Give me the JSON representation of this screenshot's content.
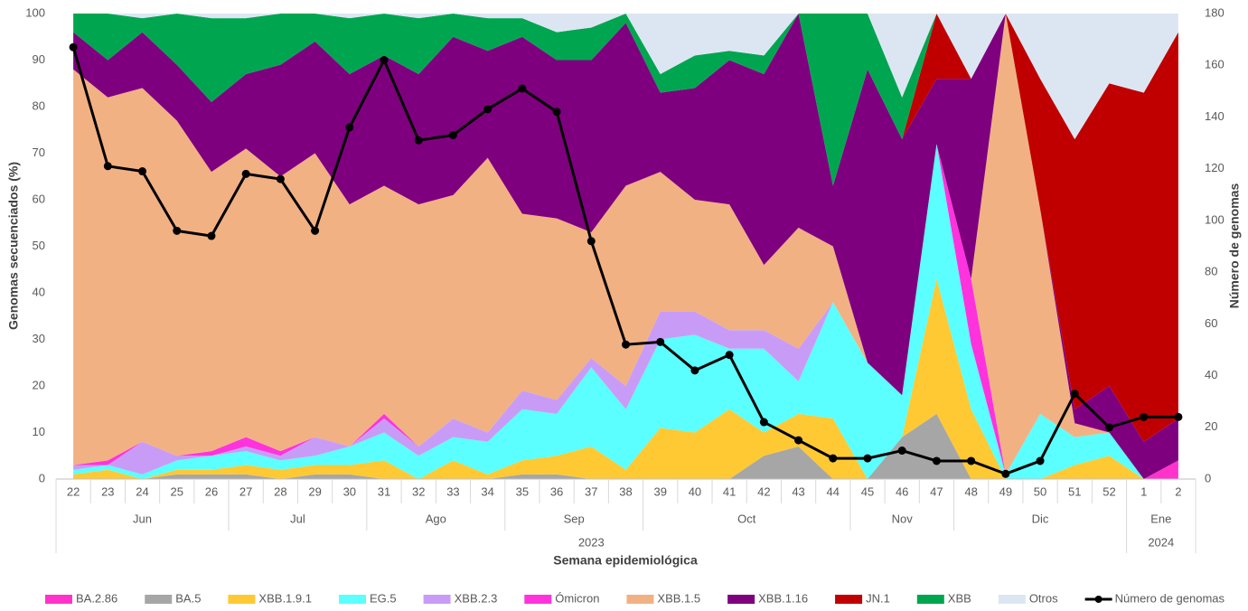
{
  "chart_data": {
    "type": "area",
    "stacked": true,
    "ylabel": "Genomas secuenciados (%)",
    "y2label": "Número de genomas",
    "xlabel": "Semana epidemiológica",
    "categories": [
      "22",
      "23",
      "24",
      "25",
      "26",
      "27",
      "28",
      "29",
      "30",
      "31",
      "32",
      "33",
      "34",
      "35",
      "36",
      "37",
      "38",
      "39",
      "40",
      "41",
      "42",
      "43",
      "44",
      "45",
      "46",
      "47",
      "48",
      "49",
      "50",
      "51",
      "52",
      "1",
      "2"
    ],
    "month_groups": [
      {
        "label": "Jun",
        "count": 5
      },
      {
        "label": "Jul",
        "count": 4
      },
      {
        "label": "Ago",
        "count": 4
      },
      {
        "label": "Sep",
        "count": 4
      },
      {
        "label": "Oct",
        "count": 6
      },
      {
        "label": "Nov",
        "count": 3
      },
      {
        "label": "Dic",
        "count": 5
      },
      {
        "label": "Ene",
        "count": 2
      }
    ],
    "year_groups": [
      {
        "label": "2023",
        "count": 31
      },
      {
        "label": "2024",
        "count": 2
      }
    ],
    "ylim": [
      0,
      100
    ],
    "yticks": [
      0,
      10,
      20,
      30,
      40,
      50,
      60,
      70,
      80,
      90,
      100
    ],
    "y2lim": [
      0,
      180
    ],
    "y2ticks": [
      0,
      20,
      40,
      60,
      80,
      100,
      120,
      140,
      160,
      180
    ],
    "series": [
      {
        "name": "BA.2.86",
        "color": "#ff33cc",
        "values": [
          0,
          0,
          0,
          0,
          0,
          0,
          0,
          0,
          0,
          0,
          0,
          0,
          0,
          0,
          0,
          0,
          0,
          0,
          0,
          0,
          0,
          0,
          0,
          0,
          0,
          0,
          0,
          0,
          0,
          0,
          0,
          0,
          4
        ]
      },
      {
        "name": "BA.5",
        "color": "#a6a6a6",
        "values": [
          0,
          0,
          0,
          1,
          1,
          1,
          0,
          1,
          1,
          0,
          0,
          0,
          0,
          1,
          1,
          0,
          0,
          0,
          0,
          0,
          5,
          7,
          0,
          0,
          9,
          14,
          0,
          0,
          0,
          0,
          0,
          0,
          0
        ]
      },
      {
        "name": "XBB.1.9.1",
        "color": "#ffc934",
        "values": [
          1,
          2,
          0,
          1,
          1,
          2,
          2,
          2,
          2,
          4,
          0,
          4,
          1,
          3,
          4,
          7,
          2,
          11,
          10,
          15,
          5,
          7,
          13,
          0,
          0,
          29,
          15,
          0,
          0,
          3,
          5,
          0,
          0
        ]
      },
      {
        "name": "EG.5",
        "color": "#5cffff",
        "values": [
          1,
          1,
          1,
          2,
          3,
          3,
          2,
          2,
          4,
          6,
          5,
          5,
          7,
          11,
          9,
          17,
          13,
          19,
          21,
          13,
          18,
          7,
          25,
          25,
          9,
          29,
          14,
          1,
          14,
          6,
          5,
          0,
          0
        ]
      },
      {
        "name": "XBB.2.3",
        "color": "#c89cf6",
        "values": [
          1,
          0,
          7,
          1,
          0,
          1,
          1,
          4,
          0,
          3,
          2,
          4,
          2,
          4,
          3,
          2,
          5,
          6,
          5,
          4,
          4,
          7,
          0,
          0,
          0,
          0,
          0,
          0,
          0,
          0,
          0,
          0,
          0
        ]
      },
      {
        "name": "Ómicron",
        "color": "#ff33dd",
        "values": [
          0,
          1,
          0,
          0,
          1,
          2,
          1,
          0,
          0,
          1,
          0,
          0,
          0,
          0,
          0,
          0,
          0,
          0,
          0,
          0,
          0,
          0,
          0,
          0,
          0,
          0,
          14,
          0,
          0,
          0,
          0,
          0,
          0
        ]
      },
      {
        "name": "XBB.1.5",
        "color": "#f2b183",
        "values": [
          85,
          78,
          76,
          72,
          60,
          62,
          59,
          61,
          52,
          49,
          52,
          48,
          59,
          38,
          39,
          27,
          43,
          30,
          24,
          27,
          14,
          26,
          12,
          0,
          0,
          0,
          0,
          99,
          44,
          3,
          0,
          0,
          0
        ]
      },
      {
        "name": "XBB.1.16",
        "color": "#7f007f",
        "values": [
          8,
          8,
          12,
          12,
          15,
          16,
          24,
          24,
          28,
          28,
          28,
          34,
          23,
          38,
          34,
          37,
          35,
          17,
          24,
          31,
          41,
          46,
          13,
          63,
          55,
          14,
          43,
          0,
          0,
          3,
          10,
          8,
          9
        ]
      },
      {
        "name": "JN.1",
        "color": "#c00000",
        "values": [
          0,
          0,
          0,
          0,
          0,
          0,
          0,
          0,
          0,
          0,
          0,
          0,
          0,
          0,
          0,
          0,
          0,
          0,
          0,
          0,
          0,
          0,
          0,
          0,
          0,
          14,
          0,
          0,
          28,
          58,
          65,
          75,
          83
        ]
      },
      {
        "name": "XBB",
        "color": "#00a550",
        "values": [
          4,
          10,
          3,
          11,
          18,
          12,
          11,
          6,
          12,
          9,
          12,
          5,
          7,
          4,
          6,
          7,
          2,
          4,
          7,
          2,
          4,
          0,
          37,
          12,
          9,
          0,
          0,
          0,
          0,
          0,
          0,
          0,
          0
        ]
      },
      {
        "name": "Otros",
        "color": "#dce6f2",
        "values": [
          0,
          0,
          1,
          0,
          1,
          1,
          0,
          0,
          1,
          0,
          1,
          0,
          1,
          1,
          4,
          3,
          0,
          13,
          9,
          8,
          9,
          0,
          0,
          0,
          18,
          0,
          14,
          0,
          14,
          27,
          15,
          17,
          4
        ]
      },
      {
        "name": "Número de genomas",
        "color": "#000000",
        "axis": "y2",
        "values": [
          167,
          121,
          119,
          96,
          94,
          118,
          116,
          96,
          136,
          162,
          131,
          133,
          143,
          151,
          142,
          92,
          52,
          53,
          42,
          48,
          22,
          15,
          8,
          8,
          11,
          7,
          7,
          2,
          7,
          33,
          20,
          24,
          24
        ]
      }
    ]
  }
}
